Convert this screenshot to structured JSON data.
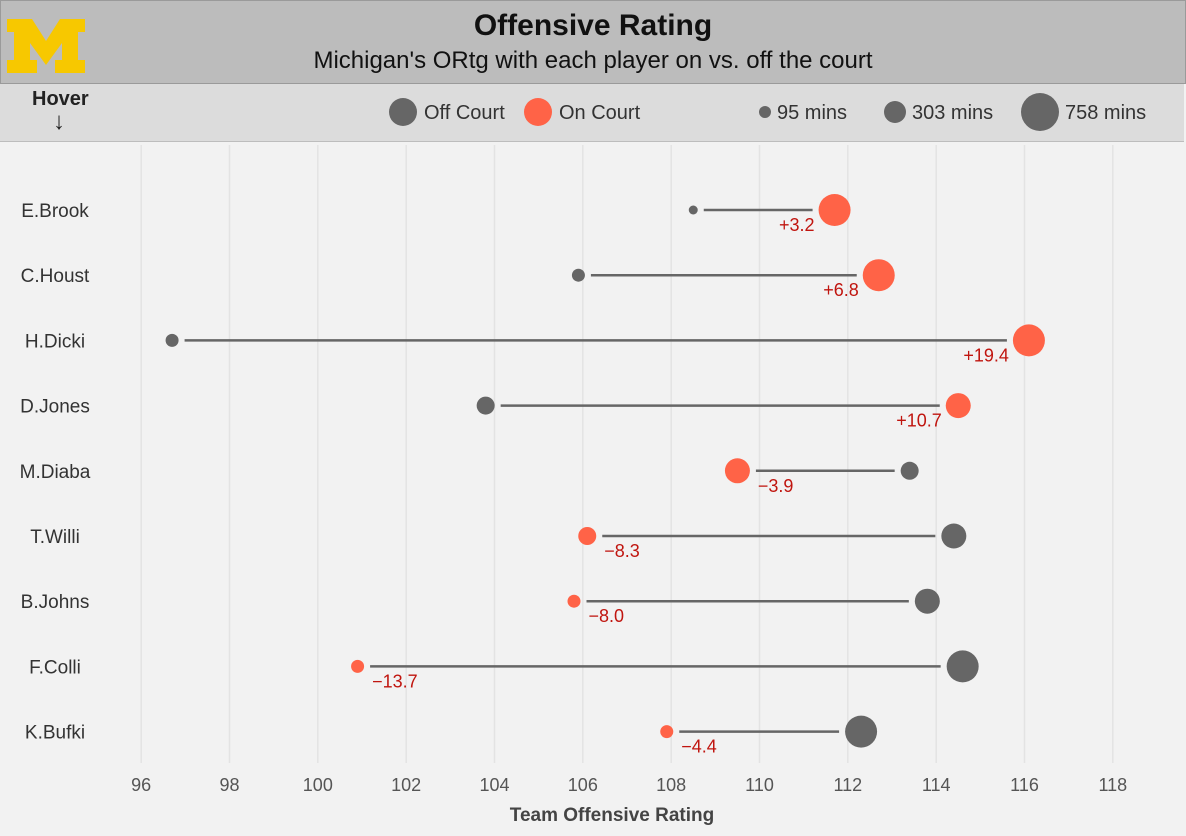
{
  "header": {
    "title": "Offensive Rating",
    "subtitle": "Michigan's ORtg with each player on vs. off the court",
    "logo_letter": "M",
    "logo_color": "#f7c800"
  },
  "controls": {
    "hover_label": "Hover",
    "hover_arrow": "↓"
  },
  "legend": {
    "color_items": [
      {
        "label": "Off Court",
        "color": "#666666"
      },
      {
        "label": "On Court",
        "color": "#ff6347"
      }
    ],
    "size_items": [
      {
        "label": "95 mins",
        "minutes": 95
      },
      {
        "label": "303 mins",
        "minutes": 303
      },
      {
        "label": "758 mins",
        "minutes": 758
      }
    ]
  },
  "colors": {
    "off_court": "#666666",
    "on_court": "#ff6347",
    "diff_label": "#c0150f",
    "connector": "#666666",
    "grid": "#e3e3e3"
  },
  "chart_data": {
    "type": "dot",
    "title": "Offensive Rating",
    "subtitle": "Michigan's ORtg with each player on vs. off the court",
    "xlabel": "Team Offensive Rating",
    "xlim": [
      95,
      119
    ],
    "xticks": [
      "96",
      "98",
      "100",
      "102",
      "104",
      "106",
      "108",
      "110",
      "112",
      "114",
      "116",
      "118"
    ],
    "grid": true,
    "legend_position": "top",
    "series": [
      {
        "name": "Off Court"
      },
      {
        "name": "On Court"
      }
    ],
    "players": [
      {
        "name": "E.Brook",
        "off": 108.5,
        "on": 111.7,
        "diff_label": "+3.2",
        "off_size": 1,
        "on_size": 5
      },
      {
        "name": "C.Houst",
        "off": 105.9,
        "on": 112.7,
        "diff_label": "+6.8",
        "off_size": 2,
        "on_size": 5
      },
      {
        "name": "H.Dicki",
        "off": 96.7,
        "on": 116.1,
        "diff_label": "+19.4",
        "off_size": 2,
        "on_size": 5
      },
      {
        "name": "D.Jones",
        "off": 103.8,
        "on": 114.5,
        "diff_label": "+10.7",
        "off_size": 3,
        "on_size": 4
      },
      {
        "name": "M.Diaba",
        "off": 113.4,
        "on": 109.5,
        "diff_label": "−3.9",
        "off_size": 3,
        "on_size": 4
      },
      {
        "name": "T.Willi",
        "off": 114.4,
        "on": 106.1,
        "diff_label": "−8.3",
        "off_size": 4,
        "on_size": 3
      },
      {
        "name": "B.Johns",
        "off": 113.8,
        "on": 105.8,
        "diff_label": "−8.0",
        "off_size": 4,
        "on_size": 2
      },
      {
        "name": "F.Colli",
        "off": 114.6,
        "on": 100.9,
        "diff_label": "−13.7",
        "off_size": 5,
        "on_size": 2
      },
      {
        "name": "K.Bufki",
        "off": 112.3,
        "on": 107.9,
        "diff_label": "−4.4",
        "off_size": 5,
        "on_size": 2
      }
    ]
  }
}
